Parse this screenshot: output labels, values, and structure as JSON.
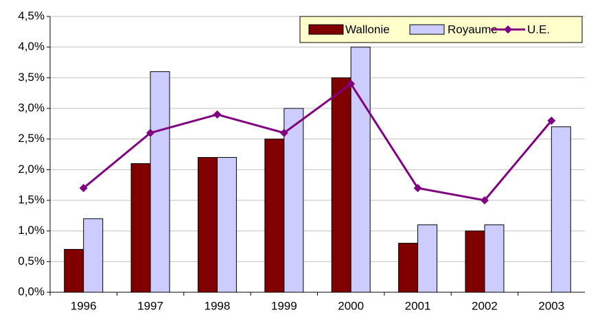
{
  "chart_data": {
    "type": "bar",
    "categories": [
      "1996",
      "1997",
      "1998",
      "1999",
      "2000",
      "2001",
      "2002",
      "2003"
    ],
    "series": [
      {
        "name": "Wallonie",
        "color": "#800000",
        "values": [
          0.7,
          2.1,
          2.2,
          2.5,
          3.5,
          0.8,
          1.0,
          null
        ]
      },
      {
        "name": "Royaume",
        "color": "#ccccff",
        "values": [
          1.2,
          3.6,
          2.2,
          3.0,
          4.0,
          1.1,
          1.1,
          2.7
        ]
      },
      {
        "name": "U.E.",
        "color": "#800080",
        "type": "line",
        "values": [
          1.7,
          2.6,
          2.9,
          2.6,
          3.4,
          1.7,
          1.5,
          2.8
        ]
      }
    ],
    "ylim": [
      0,
      4.5
    ],
    "yticks": [
      {
        "value": 0,
        "label": "0,0%"
      },
      {
        "value": 0.5,
        "label": "0,5%"
      },
      {
        "value": 1.0,
        "label": "1,0%"
      },
      {
        "value": 1.5,
        "label": "1,5%"
      },
      {
        "value": 2.0,
        "label": "2,0%"
      },
      {
        "value": 2.5,
        "label": "2,5%"
      },
      {
        "value": 3.0,
        "label": "3,0%"
      },
      {
        "value": 3.5,
        "label": "3,5%"
      },
      {
        "value": 4.0,
        "label": "4,0%"
      },
      {
        "value": 4.5,
        "label": "4,5%"
      }
    ],
    "grid": true,
    "legend": "top-right"
  }
}
